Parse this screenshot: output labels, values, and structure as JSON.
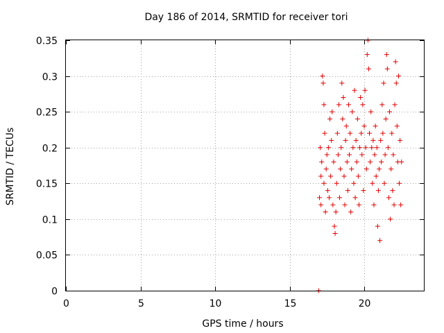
{
  "chart_data": {
    "type": "scatter",
    "title": "Day 186 of 2014, SRMTID for receiver tori",
    "xlabel": "GPS time / hours",
    "ylabel": "SRMTID / TECUs",
    "xlim": [
      0,
      24
    ],
    "ylim": [
      0,
      0.35
    ],
    "xticks": [
      "0",
      "5",
      "10",
      "15",
      "20"
    ],
    "yticks": [
      "0",
      "0.05",
      "0.1",
      "0.15",
      "0.2",
      "0.25",
      "0.3",
      "0.35"
    ],
    "grid": true,
    "marker": "plus",
    "color": "#e00000",
    "series": [
      {
        "points": [
          [
            16.95,
            0.0
          ],
          [
            17.0,
            0.13
          ],
          [
            17.05,
            0.2
          ],
          [
            17.1,
            0.16
          ],
          [
            17.1,
            0.12
          ],
          [
            17.15,
            0.18
          ],
          [
            17.2,
            0.3
          ],
          [
            17.25,
            0.29
          ],
          [
            17.3,
            0.26
          ],
          [
            17.3,
            0.15
          ],
          [
            17.35,
            0.22
          ],
          [
            17.4,
            0.11
          ],
          [
            17.45,
            0.17
          ],
          [
            17.5,
            0.19
          ],
          [
            17.55,
            0.14
          ],
          [
            17.6,
            0.2
          ],
          [
            17.65,
            0.13
          ],
          [
            17.7,
            0.24
          ],
          [
            17.75,
            0.16
          ],
          [
            17.8,
            0.21
          ],
          [
            17.85,
            0.25
          ],
          [
            17.9,
            0.12
          ],
          [
            17.95,
            0.18
          ],
          [
            18.0,
            0.09
          ],
          [
            18.05,
            0.08
          ],
          [
            18.1,
            0.11
          ],
          [
            18.15,
            0.15
          ],
          [
            18.2,
            0.22
          ],
          [
            18.25,
            0.19
          ],
          [
            18.3,
            0.26
          ],
          [
            18.35,
            0.13
          ],
          [
            18.4,
            0.17
          ],
          [
            18.45,
            0.2
          ],
          [
            18.5,
            0.29
          ],
          [
            18.55,
            0.24
          ],
          [
            18.6,
            0.27
          ],
          [
            18.65,
            0.16
          ],
          [
            18.7,
            0.12
          ],
          [
            18.75,
            0.21
          ],
          [
            18.8,
            0.23
          ],
          [
            18.85,
            0.18
          ],
          [
            18.9,
            0.14
          ],
          [
            18.95,
            0.26
          ],
          [
            19.0,
            0.19
          ],
          [
            19.05,
            0.22
          ],
          [
            19.1,
            0.11
          ],
          [
            19.15,
            0.17
          ],
          [
            19.2,
            0.25
          ],
          [
            19.25,
            0.2
          ],
          [
            19.3,
            0.15
          ],
          [
            19.35,
            0.28
          ],
          [
            19.4,
            0.13
          ],
          [
            19.45,
            0.21
          ],
          [
            19.5,
            0.18
          ],
          [
            19.55,
            0.24
          ],
          [
            19.6,
            0.16
          ],
          [
            19.65,
            0.12
          ],
          [
            19.7,
            0.2
          ],
          [
            19.75,
            0.27
          ],
          [
            19.8,
            0.22
          ],
          [
            19.85,
            0.19
          ],
          [
            19.9,
            0.26
          ],
          [
            19.95,
            0.14
          ],
          [
            20.0,
            0.23
          ],
          [
            20.05,
            0.28
          ],
          [
            20.1,
            0.2
          ],
          [
            20.15,
            0.17
          ],
          [
            20.2,
            0.33
          ],
          [
            20.25,
            0.35
          ],
          [
            20.3,
            0.31
          ],
          [
            20.35,
            0.22
          ],
          [
            20.4,
            0.18
          ],
          [
            20.45,
            0.25
          ],
          [
            20.5,
            0.2
          ],
          [
            20.55,
            0.15
          ],
          [
            20.6,
            0.21
          ],
          [
            20.65,
            0.12
          ],
          [
            20.7,
            0.19
          ],
          [
            20.75,
            0.23
          ],
          [
            20.8,
            0.16
          ],
          [
            20.85,
            0.2
          ],
          [
            20.9,
            0.09
          ],
          [
            20.95,
            0.14
          ],
          [
            21.0,
            0.17
          ],
          [
            21.05,
            0.07
          ],
          [
            21.1,
            0.21
          ],
          [
            21.15,
            0.18
          ],
          [
            21.2,
            0.26
          ],
          [
            21.25,
            0.22
          ],
          [
            21.3,
            0.29
          ],
          [
            21.35,
            0.15
          ],
          [
            21.4,
            0.19
          ],
          [
            21.45,
            0.24
          ],
          [
            21.5,
            0.33
          ],
          [
            21.55,
            0.31
          ],
          [
            21.6,
            0.2
          ],
          [
            21.65,
            0.13
          ],
          [
            21.7,
            0.25
          ],
          [
            21.75,
            0.1
          ],
          [
            21.8,
            0.17
          ],
          [
            21.85,
            0.22
          ],
          [
            21.9,
            0.14
          ],
          [
            21.95,
            0.19
          ],
          [
            22.0,
            0.12
          ],
          [
            22.05,
            0.26
          ],
          [
            22.1,
            0.32
          ],
          [
            22.15,
            0.29
          ],
          [
            22.2,
            0.23
          ],
          [
            22.25,
            0.18
          ],
          [
            22.3,
            0.3
          ],
          [
            22.35,
            0.15
          ],
          [
            22.4,
            0.21
          ],
          [
            22.45,
            0.12
          ],
          [
            22.5,
            0.18
          ]
        ]
      }
    ]
  }
}
